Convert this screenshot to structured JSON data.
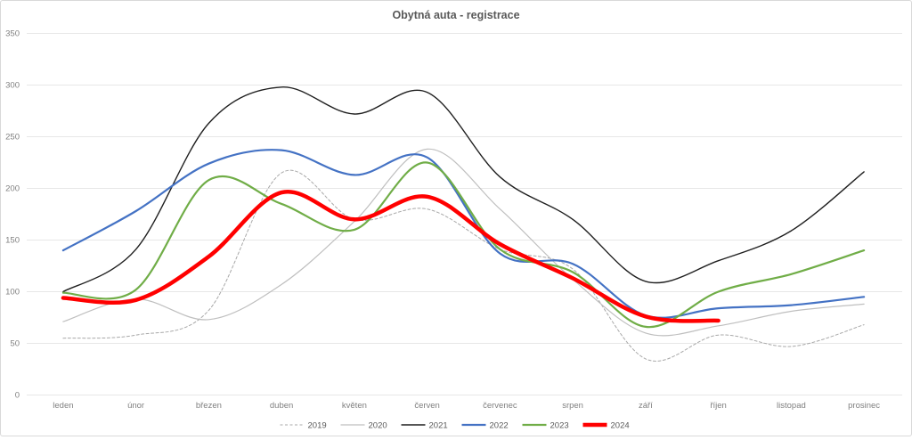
{
  "title": "Obytná auta - registrace",
  "palette": {
    "title_color": "#595959",
    "axis_label_color": "#808080",
    "gridline_color": "#e7e7e7",
    "background": "#ffffff",
    "border": "#d9d9d9"
  },
  "chart_data": {
    "type": "line",
    "title": "Obytná auta - registrace",
    "smooth": true,
    "grid": true,
    "legend_position": "bottom",
    "categories": [
      "leden",
      "únor",
      "březen",
      "duben",
      "květen",
      "červen",
      "červenec",
      "srpen",
      "září",
      "říjen",
      "listopad",
      "prosinec"
    ],
    "y_axis": {
      "min": 0,
      "max": 350,
      "step": 50
    },
    "series": [
      {
        "name": "2019",
        "color": "#a8a8a8",
        "dash": "3 2.5",
        "width": 1,
        "values": [
          55,
          58,
          82,
          215,
          170,
          180,
          141,
          122,
          35,
          58,
          47,
          68
        ]
      },
      {
        "name": "2020",
        "color": "#bfbfbf",
        "dash": null,
        "width": 1.2,
        "values": [
          71,
          93,
          73,
          107,
          168,
          238,
          180,
          112,
          60,
          67,
          81,
          88
        ]
      },
      {
        "name": "2021",
        "color": "#1f1f1f",
        "dash": null,
        "width": 1.4,
        "values": [
          100,
          141,
          263,
          298,
          272,
          293,
          211,
          170,
          110,
          130,
          159,
          216
        ]
      },
      {
        "name": "2022",
        "color": "#4472c4",
        "dash": null,
        "width": 2.2,
        "values": [
          140,
          178,
          224,
          237,
          213,
          230,
          137,
          127,
          77,
          84,
          87,
          95
        ]
      },
      {
        "name": "2023",
        "color": "#70ad47",
        "dash": null,
        "width": 2.2,
        "values": [
          99,
          102,
          208,
          185,
          160,
          225,
          141,
          119,
          66,
          100,
          117,
          140
        ]
      },
      {
        "name": "2024",
        "color": "#ff0000",
        "dash": null,
        "width": 4.5,
        "values": [
          94,
          92,
          134,
          196,
          170,
          192,
          146,
          113,
          76,
          72,
          null,
          null
        ]
      }
    ]
  }
}
